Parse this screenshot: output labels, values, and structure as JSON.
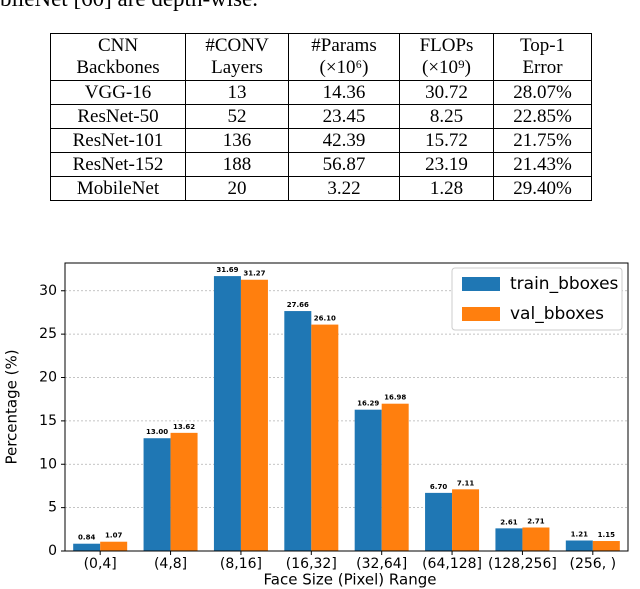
{
  "text": "bileNet [60] are depth-wise.",
  "table": {
    "header": [
      [
        "CNN",
        "Backbones"
      ],
      [
        "#CONV",
        "Layers"
      ],
      [
        "#Params",
        "(×10⁶)"
      ],
      [
        "FLOPs",
        "(×10⁹)"
      ],
      [
        "Top-1",
        "Error"
      ]
    ],
    "rows": [
      [
        "VGG-16",
        "13",
        "14.36",
        "30.72",
        "28.07%"
      ],
      [
        "ResNet-50",
        "52",
        "23.45",
        "8.25",
        "22.85%"
      ],
      [
        "ResNet-101",
        "136",
        "42.39",
        "15.72",
        "21.75%"
      ],
      [
        "ResNet-152",
        "188",
        "56.87",
        "23.19",
        "21.43%"
      ],
      [
        "MobileNet",
        "20",
        "3.22",
        "1.28",
        "29.40%"
      ]
    ]
  },
  "chart_data": {
    "type": "bar",
    "x_label": "Face Size (Pixel) Range",
    "y_label": "Percentage (%)",
    "categories": [
      "(0,4]",
      "(4,8]",
      "(8,16]",
      "(16,32]",
      "(32,64]",
      "(64,128]",
      "(128,256]",
      "(256, )"
    ],
    "series": [
      {
        "name": "train_bboxes",
        "color": "#1f77b4",
        "values": [
          0.84,
          13.0,
          31.69,
          27.66,
          16.29,
          6.7,
          2.61,
          1.21
        ],
        "value_labels": [
          "0.84",
          "13.00",
          "31.69",
          "27.66",
          "16.29",
          "6.70",
          "2.61",
          "1.21"
        ]
      },
      {
        "name": "val_bboxes",
        "color": "#ff7f0e",
        "values": [
          1.07,
          13.62,
          31.27,
          26.1,
          16.98,
          7.11,
          2.71,
          1.15
        ],
        "value_labels": [
          "1.07",
          "13.62",
          "31.27",
          "26.10",
          "16.98",
          "7.11",
          "2.71",
          "1.15"
        ]
      }
    ],
    "ylim": [
      0,
      33.2
    ],
    "yticks": [
      0,
      5,
      10,
      15,
      20,
      25,
      30
    ],
    "grid": true,
    "legend": "upper-right"
  }
}
